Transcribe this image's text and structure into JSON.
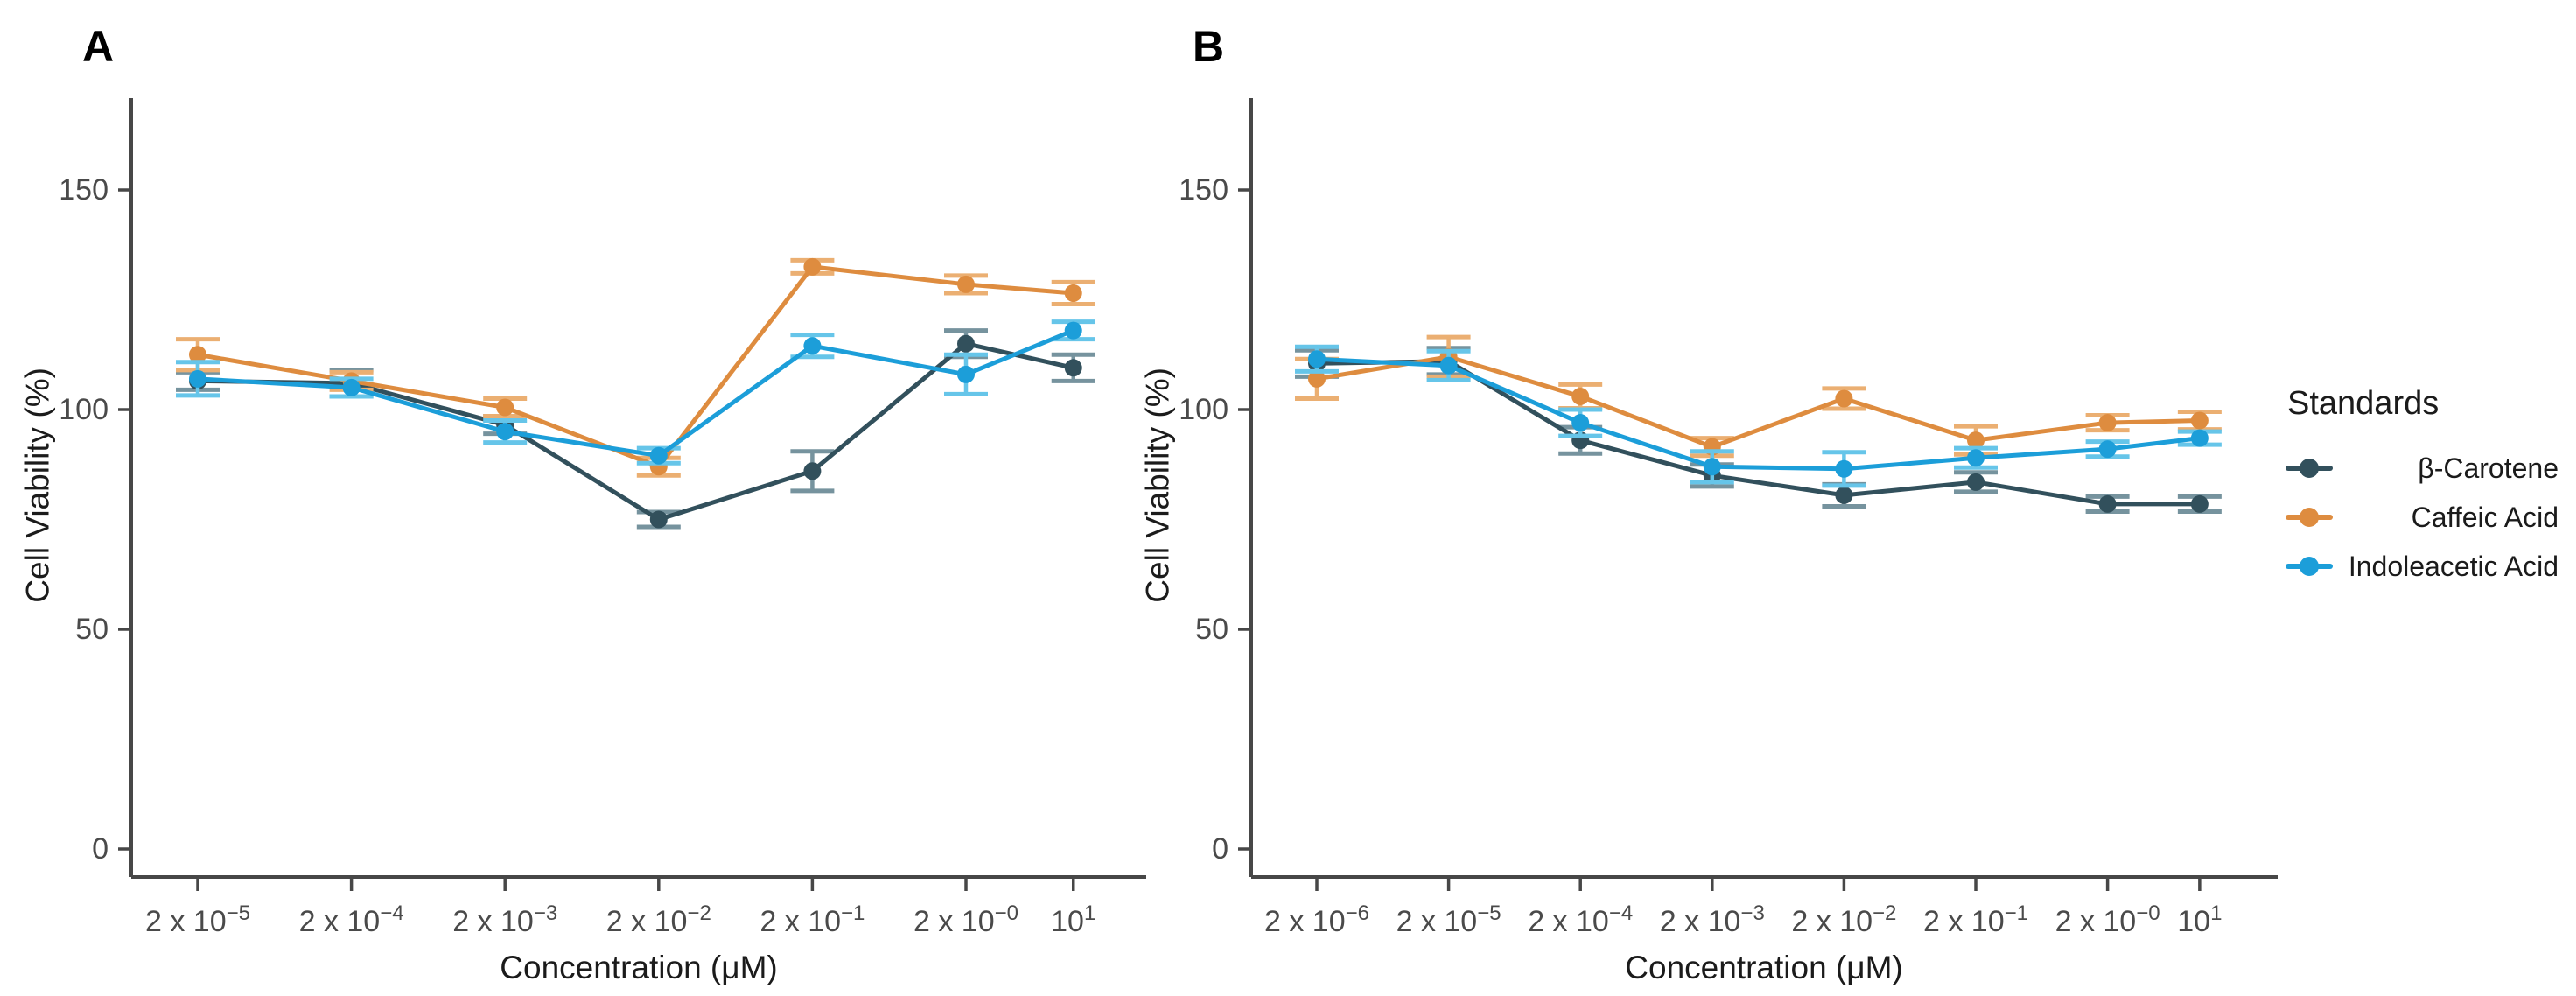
{
  "colors": {
    "background": "#ffffff",
    "axis": "#474747",
    "tick_label": "#4a4a4a",
    "text": "#1b1b1b"
  },
  "legend": {
    "title": "Standards",
    "items": [
      "β-Carotene",
      "Caffeic Acid",
      "Indoleacetic Acid"
    ]
  },
  "chart_data": [
    {
      "type": "line",
      "panel_label": "A",
      "xlabel": "Concentration (μM)",
      "ylabel": "Cell Viability (%)",
      "x_scale": "log10",
      "x_values_uM": [
        2e-05,
        0.0002,
        0.002,
        0.02,
        0.2,
        2,
        10
      ],
      "x_tick_labels": [
        [
          "2 x 10",
          "−5"
        ],
        [
          "2 x 10",
          "−4"
        ],
        [
          "2 x 10",
          "−3"
        ],
        [
          "2 x 10",
          "−2"
        ],
        [
          "2 x 10",
          "−1"
        ],
        [
          "2 x 10",
          "−0"
        ],
        [
          "10",
          "1"
        ]
      ],
      "y_ticks": [
        0,
        50,
        100,
        150
      ],
      "ylim": [
        0,
        170
      ],
      "legend_position": "right",
      "grid": false,
      "series": [
        {
          "name": "β-Carotene",
          "color": "#32505C",
          "error_color": "#76939E",
          "values": [
            106.5,
            106,
            96.5,
            75,
            86,
            115,
            109.5
          ],
          "errors": [
            2,
            3,
            2,
            1.7,
            4.5,
            3,
            3
          ]
        },
        {
          "name": "Caffeic Acid",
          "color": "#DE8C3F",
          "error_color": "#EBAF72",
          "values": [
            112.5,
            106.5,
            100.5,
            87,
            132.5,
            128.5,
            126.5
          ],
          "errors": [
            3.5,
            2,
            2,
            2,
            1.5,
            2,
            2.5
          ]
        },
        {
          "name": "Indoleacetic Acid",
          "color": "#1C9ED9",
          "error_color": "#66C5E9",
          "values": [
            107,
            105,
            95,
            89.5,
            114.5,
            108,
            118
          ],
          "errors": [
            3.8,
            2,
            2.5,
            1.7,
            2.5,
            4.5,
            2
          ]
        }
      ]
    },
    {
      "type": "line",
      "panel_label": "B",
      "xlabel": "Concentration (μM)",
      "ylabel": "Cell Viability (%)",
      "x_scale": "log10",
      "x_values_uM": [
        2e-06,
        2e-05,
        0.0002,
        0.002,
        0.02,
        0.2,
        2,
        10
      ],
      "x_tick_labels": [
        [
          "2 x 10",
          "−6"
        ],
        [
          "2 x 10",
          "−5"
        ],
        [
          "2 x 10",
          "−4"
        ],
        [
          "2 x 10",
          "−3"
        ],
        [
          "2 x 10",
          "−2"
        ],
        [
          "2 x 10",
          "−1"
        ],
        [
          "2 x 10",
          "−0"
        ],
        [
          "10",
          "1"
        ]
      ],
      "y_ticks": [
        0,
        50,
        100,
        150
      ],
      "ylim": [
        0,
        170
      ],
      "legend_position": "right",
      "grid": false,
      "series": [
        {
          "name": "β-Carotene",
          "color": "#32505C",
          "error_color": "#76939E",
          "values": [
            110.5,
            111,
            93,
            85,
            80.5,
            83.5,
            78.5,
            78.5
          ],
          "errors": [
            3,
            3,
            3,
            2.5,
            2.5,
            2.2,
            1.7,
            1.7
          ]
        },
        {
          "name": "Caffeic Acid",
          "color": "#DE8C3F",
          "error_color": "#EBAF72",
          "values": [
            107,
            112,
            103,
            91.5,
            102.5,
            93,
            97,
            97.5
          ],
          "errors": [
            4.5,
            4.5,
            2.7,
            2,
            2.3,
            3.2,
            1.7,
            2
          ]
        },
        {
          "name": "Indoleacetic Acid",
          "color": "#1C9ED9",
          "error_color": "#66C5E9",
          "values": [
            111.5,
            110,
            97,
            87,
            86.5,
            89,
            91,
            93.5
          ],
          "errors": [
            2.8,
            3.3,
            3,
            3.5,
            3.8,
            2.2,
            1.7,
            1.5
          ]
        }
      ]
    }
  ]
}
